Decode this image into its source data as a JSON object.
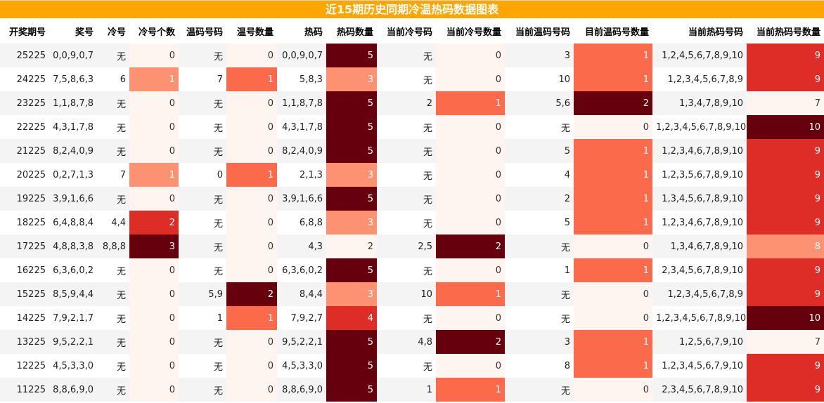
{
  "title": "近15期历史同期冷温热码数据图表",
  "columns": [
    "开奖期号",
    "奖号",
    "冷号",
    "冷号个数",
    "温码号码",
    "温号数量",
    "热码",
    "热码数量",
    "当前冷号码",
    "当前冷号数量",
    "当前温码号码",
    "目前温码号数量",
    "当前热码号码",
    "当前热码号数量"
  ],
  "rows": [
    [
      "25225",
      "0,0,9,0,7",
      "无",
      "0",
      "无",
      "0",
      "0,0,9,0,7",
      "5",
      "无",
      "0",
      "3",
      "1",
      "1,2,4,5,6,7,8,9,10",
      "9"
    ],
    [
      "24225",
      "7,5,8,6,3",
      "6",
      "1",
      "7",
      "1",
      "5,8,3",
      "3",
      "无",
      "0",
      "10",
      "1",
      "1,2,3,4,5,6,7,8,9",
      "9"
    ],
    [
      "23225",
      "1,1,8,7,8",
      "无",
      "0",
      "无",
      "0",
      "1,1,8,7,8",
      "5",
      "2",
      "1",
      "5,6",
      "2",
      "1,3,4,7,8,9,10",
      "7"
    ],
    [
      "22225",
      "4,3,1,7,8",
      "无",
      "0",
      "无",
      "0",
      "4,3,1,7,8",
      "5",
      "无",
      "0",
      "无",
      "0",
      "1,2,3,4,5,6,7,8,9,10",
      "10"
    ],
    [
      "21225",
      "8,2,4,0,9",
      "无",
      "0",
      "无",
      "0",
      "8,2,4,0,9",
      "5",
      "无",
      "0",
      "5",
      "1",
      "1,2,3,4,6,7,8,9,10",
      "9"
    ],
    [
      "20225",
      "0,2,7,1,3",
      "7",
      "1",
      "0",
      "1",
      "2,1,3",
      "3",
      "无",
      "0",
      "4",
      "1",
      "1,2,3,5,6,7,8,9,10",
      "9"
    ],
    [
      "19225",
      "3,9,1,6,6",
      "无",
      "0",
      "无",
      "0",
      "3,9,1,6,6",
      "5",
      "无",
      "0",
      "2",
      "1",
      "1,3,4,5,6,7,8,9,10",
      "9"
    ],
    [
      "18225",
      "6,4,8,8,4",
      "4,4",
      "2",
      "无",
      "0",
      "6,8,8",
      "3",
      "无",
      "0",
      "5",
      "1",
      "1,2,3,4,6,7,8,9,10",
      "9"
    ],
    [
      "17225",
      "4,8,8,3,8",
      "8,8,8",
      "3",
      "无",
      "0",
      "4,3",
      "2",
      "2,5",
      "2",
      "无",
      "0",
      "1,3,4,6,7,8,9,10",
      "8"
    ],
    [
      "16225",
      "6,3,6,0,2",
      "无",
      "0",
      "无",
      "0",
      "6,3,6,0,2",
      "5",
      "无",
      "0",
      "1",
      "1",
      "2,3,4,5,6,7,8,9,10",
      "9"
    ],
    [
      "15225",
      "8,5,9,4,4",
      "无",
      "0",
      "5,9",
      "2",
      "8,4,4",
      "3",
      "10",
      "1",
      "无",
      "0",
      "1,2,3,4,5,6,7,8,9",
      "9"
    ],
    [
      "14225",
      "7,9,2,1,7",
      "无",
      "0",
      "1",
      "1",
      "7,9,2,7",
      "4",
      "无",
      "0",
      "无",
      "0",
      "1,2,3,4,5,6,7,8,9,10",
      "10"
    ],
    [
      "13225",
      "9,5,2,2,1",
      "无",
      "0",
      "无",
      "0",
      "9,5,2,2,1",
      "5",
      "4,8",
      "2",
      "3",
      "1",
      "1,2,5,6,7,9,10",
      "7"
    ],
    [
      "12225",
      "4,5,3,3,0",
      "无",
      "0",
      "无",
      "0",
      "4,5,3,3,0",
      "5",
      "无",
      "0",
      "8",
      "1",
      "1,2,3,4,5,6,7,9,10",
      "9"
    ],
    [
      "11225",
      "8,8,6,9,0",
      "无",
      "0",
      "无",
      "0",
      "8,8,6,9,0",
      "5",
      "1",
      "1",
      "无",
      "0",
      "2,3,4,5,6,7,8,9,10",
      "9"
    ]
  ],
  "heat_colors": {
    "c1": "#fcbba1",
    "c2": "#fc9272",
    "c3": "#fb6a4a",
    "c4": "#de2d26",
    "c5": "#67000d",
    "c0": "#fff5f0"
  }
}
